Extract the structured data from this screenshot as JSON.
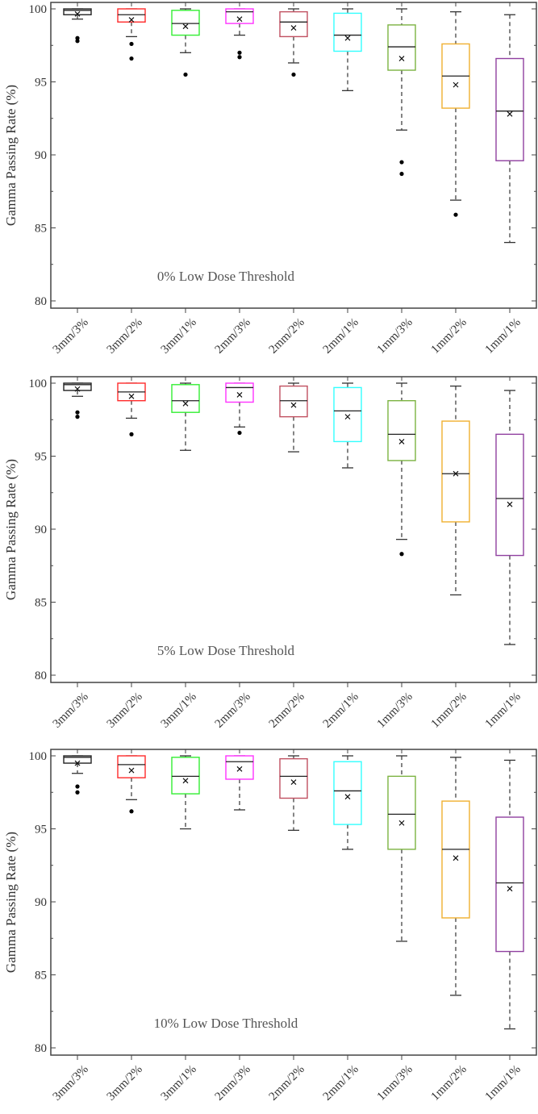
{
  "chart_data": [
    {
      "type": "box",
      "annotation": "0% Low Dose Threshold",
      "ylabel": "Gamma Passing Rate (%)",
      "ylim": [
        80,
        100
      ],
      "yticks": [
        "80",
        "85",
        "90",
        "95",
        "100"
      ],
      "categories": [
        "3mm/3%",
        "3mm/2%",
        "3mm/1%",
        "2mm/3%",
        "2mm/2%",
        "2mm/1%",
        "1mm/3%",
        "1mm/2%",
        "1mm/1%"
      ],
      "boxes": [
        {
          "whisker_high": 100,
          "q3": 100,
          "median": 99.9,
          "q1": 99.6,
          "whisker_low": 99.3,
          "mean": 99.65,
          "outliers": [
            98.0,
            97.8
          ]
        },
        {
          "whisker_high": 100,
          "q3": 100,
          "median": 99.6,
          "q1": 99.1,
          "whisker_low": 98.1,
          "mean": 99.25,
          "outliers": [
            97.6,
            96.6
          ]
        },
        {
          "whisker_high": 100,
          "q3": 99.9,
          "median": 99.0,
          "q1": 98.2,
          "whisker_low": 97.0,
          "mean": 98.8,
          "outliers": [
            95.5
          ]
        },
        {
          "whisker_high": 100,
          "q3": 100,
          "median": 99.8,
          "q1": 99.0,
          "whisker_low": 98.2,
          "mean": 99.3,
          "outliers": [
            97.0,
            96.7
          ]
        },
        {
          "whisker_high": 100,
          "q3": 99.8,
          "median": 99.1,
          "q1": 98.1,
          "whisker_low": 96.3,
          "mean": 98.7,
          "outliers": [
            95.5
          ]
        },
        {
          "whisker_high": 100,
          "q3": 99.7,
          "median": 98.2,
          "q1": 97.1,
          "whisker_low": 94.4,
          "mean": 98.0,
          "outliers": []
        },
        {
          "whisker_high": 100,
          "q3": 98.9,
          "median": 97.4,
          "q1": 95.8,
          "whisker_low": 91.7,
          "mean": 96.6,
          "outliers": [
            89.5,
            88.7
          ]
        },
        {
          "whisker_high": 99.8,
          "q3": 97.6,
          "median": 95.4,
          "q1": 93.2,
          "whisker_low": 86.9,
          "mean": 94.8,
          "outliers": [
            85.9
          ]
        },
        {
          "whisker_high": 99.6,
          "q3": 96.6,
          "median": 93.0,
          "q1": 89.6,
          "whisker_low": 84.0,
          "mean": 92.8,
          "outliers": []
        }
      ]
    },
    {
      "type": "box",
      "annotation": "5% Low Dose Threshold",
      "ylabel": "Gamma Passing Rate (%)",
      "ylim": [
        80,
        100
      ],
      "yticks": [
        "80",
        "85",
        "90",
        "95",
        "100"
      ],
      "categories": [
        "3mm/3%",
        "3mm/2%",
        "3mm/1%",
        "2mm/3%",
        "2mm/2%",
        "2mm/1%",
        "1mm/3%",
        "1mm/2%",
        "1mm/1%"
      ],
      "boxes": [
        {
          "whisker_high": 100,
          "q3": 100,
          "median": 99.9,
          "q1": 99.5,
          "whisker_low": 99.1,
          "mean": 99.6,
          "outliers": [
            98.0,
            97.7
          ]
        },
        {
          "whisker_high": 100,
          "q3": 100,
          "median": 99.4,
          "q1": 98.8,
          "whisker_low": 97.6,
          "mean": 99.1,
          "outliers": [
            96.5
          ]
        },
        {
          "whisker_high": 100,
          "q3": 99.9,
          "median": 98.8,
          "q1": 98.0,
          "whisker_low": 95.4,
          "mean": 98.6,
          "outliers": []
        },
        {
          "whisker_high": 100,
          "q3": 100,
          "median": 99.7,
          "q1": 98.7,
          "whisker_low": 97.0,
          "mean": 99.2,
          "outliers": [
            96.6
          ]
        },
        {
          "whisker_high": 100,
          "q3": 99.8,
          "median": 98.8,
          "q1": 97.7,
          "whisker_low": 95.3,
          "mean": 98.5,
          "outliers": []
        },
        {
          "whisker_high": 100,
          "q3": 99.7,
          "median": 98.1,
          "q1": 96.0,
          "whisker_low": 94.2,
          "mean": 97.7,
          "outliers": []
        },
        {
          "whisker_high": 100,
          "q3": 98.8,
          "median": 96.5,
          "q1": 94.7,
          "whisker_low": 89.3,
          "mean": 96.0,
          "outliers": [
            88.3
          ]
        },
        {
          "whisker_high": 99.8,
          "q3": 97.4,
          "median": 93.8,
          "q1": 90.5,
          "whisker_low": 85.5,
          "mean": 93.8,
          "outliers": []
        },
        {
          "whisker_high": 99.5,
          "q3": 96.5,
          "median": 92.1,
          "q1": 88.2,
          "whisker_low": 82.1,
          "mean": 91.7,
          "outliers": []
        }
      ]
    },
    {
      "type": "box",
      "annotation": "10% Low Dose Threshold",
      "ylabel": "Gamma Passing Rate (%)",
      "ylim": [
        80,
        100
      ],
      "yticks": [
        "80",
        "85",
        "90",
        "95",
        "100"
      ],
      "categories": [
        "3mm/3%",
        "3mm/2%",
        "3mm/1%",
        "2mm/3%",
        "2mm/2%",
        "2mm/1%",
        "1mm/3%",
        "1mm/2%",
        "1mm/1%"
      ],
      "boxes": [
        {
          "whisker_high": 100,
          "q3": 100,
          "median": 99.9,
          "q1": 99.5,
          "whisker_low": 98.8,
          "mean": 99.5,
          "outliers": [
            97.9,
            97.5
          ]
        },
        {
          "whisker_high": 100,
          "q3": 100,
          "median": 99.4,
          "q1": 98.5,
          "whisker_low": 97.0,
          "mean": 99.0,
          "outliers": [
            96.2
          ]
        },
        {
          "whisker_high": 100,
          "q3": 99.9,
          "median": 98.6,
          "q1": 97.4,
          "whisker_low": 95.0,
          "mean": 98.3,
          "outliers": []
        },
        {
          "whisker_high": 100,
          "q3": 100,
          "median": 99.6,
          "q1": 98.4,
          "whisker_low": 96.3,
          "mean": 99.1,
          "outliers": []
        },
        {
          "whisker_high": 100,
          "q3": 99.8,
          "median": 98.6,
          "q1": 97.1,
          "whisker_low": 94.9,
          "mean": 98.2,
          "outliers": []
        },
        {
          "whisker_high": 100,
          "q3": 99.6,
          "median": 97.6,
          "q1": 95.3,
          "whisker_low": 93.6,
          "mean": 97.2,
          "outliers": []
        },
        {
          "whisker_high": 100,
          "q3": 98.6,
          "median": 96.0,
          "q1": 93.6,
          "whisker_low": 87.3,
          "mean": 95.4,
          "outliers": []
        },
        {
          "whisker_high": 99.9,
          "q3": 96.9,
          "median": 93.6,
          "q1": 88.9,
          "whisker_low": 83.6,
          "mean": 93.0,
          "outliers": []
        },
        {
          "whisker_high": 99.7,
          "q3": 95.8,
          "median": 91.3,
          "q1": 86.6,
          "whisker_low": 81.3,
          "mean": 90.9,
          "outliers": []
        }
      ]
    }
  ],
  "box_colors": [
    "#222222",
    "#ff2a2a",
    "#33ee33",
    "#ff33ff",
    "#c05060",
    "#33ffff",
    "#7cb342",
    "#f0b030",
    "#9040a0"
  ]
}
